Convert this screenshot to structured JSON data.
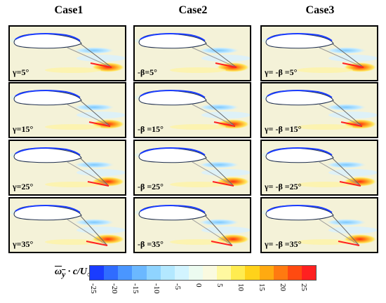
{
  "columns": [
    {
      "title": "Case1",
      "labels": [
        "γ=5°",
        "γ=15°",
        "γ=25°",
        "γ=35°"
      ]
    },
    {
      "title": "Case2",
      "labels": [
        "-β=5°",
        "-β =15°",
        "-β =25°",
        "-β =35°"
      ]
    },
    {
      "title": "Case3",
      "labels": [
        "γ= -β =5°",
        "γ= -β =15°",
        "γ= -β =25°",
        "γ= -β =35°"
      ]
    }
  ],
  "colorbar": {
    "label_main": "ω",
    "label_sub": "y",
    "label_rest": " · c/U",
    "label_inf": "∞",
    "ticks": [
      "-25",
      "-20",
      "-15",
      "-10",
      "-5",
      "0",
      "5",
      "10",
      "15",
      "20",
      "25"
    ],
    "colors": [
      "#1a3cff",
      "#2f6cff",
      "#4a96ff",
      "#6bb8ff",
      "#8fd4ff",
      "#b3e8ff",
      "#d2f4ff",
      "#ecfbf0",
      "#fafae0",
      "#fff8a0",
      "#ffec50",
      "#ffd21a",
      "#ffaa10",
      "#ff7a10",
      "#ff4a10",
      "#ff2020"
    ]
  }
}
